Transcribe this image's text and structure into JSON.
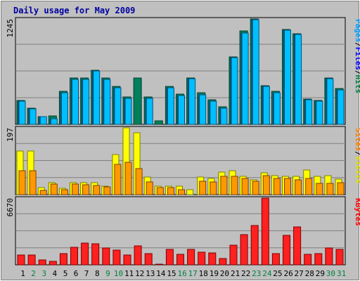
{
  "chart_data": {
    "type": "bar",
    "title": "Daily usage for May 2009",
    "days": [
      "1",
      "2",
      "3",
      "4",
      "5",
      "6",
      "7",
      "8",
      "9",
      "10",
      "11",
      "12",
      "13",
      "14",
      "15",
      "16",
      "17",
      "18",
      "19",
      "20",
      "21",
      "22",
      "23",
      "24",
      "25",
      "26",
      "27",
      "28",
      "29",
      "30",
      "31"
    ],
    "weekend_days": [
      "2",
      "3",
      "9",
      "10",
      "16",
      "17",
      "23",
      "24",
      "30",
      "31"
    ],
    "panels": [
      {
        "name": "pages-files-hits",
        "ymax": 1245,
        "ymax_label": "1245",
        "legend": [
          {
            "label": "Pages",
            "color": "#00a0ff"
          },
          {
            "label": "/",
            "color": "#000000"
          },
          {
            "label": "Files",
            "color": "#0000ff"
          },
          {
            "label": "/",
            "color": "#000000"
          },
          {
            "label": "Hits",
            "color": "#008040"
          }
        ],
        "series": [
          {
            "name": "Hits",
            "color": "#00805c",
            "values": [
              280,
              190,
              95,
              100,
              390,
              550,
              550,
              640,
              550,
              450,
              320,
              550,
              320,
              40,
              450,
              360,
              550,
              370,
              290,
              210,
              800,
              1100,
              1245,
              460,
              390,
              1120,
              1070,
              300,
              280,
              550,
              420
            ]
          },
          {
            "name": "Files",
            "color": "#1e6ec8",
            "values": [
              270,
              180,
              90,
              70,
              370,
              530,
              530,
              630,
              530,
              430,
              310,
              0,
              310,
              0,
              430,
              340,
              540,
              350,
              270,
              190,
              790,
              1080,
              1240,
              450,
              370,
              1110,
              1060,
              290,
              270,
              540,
              410
            ]
          },
          {
            "name": "Pages",
            "color": "#00bfff",
            "values": [
              270,
              180,
              90,
              70,
              370,
              530,
              530,
              630,
              530,
              430,
              310,
              0,
              310,
              0,
              430,
              340,
              540,
              350,
              270,
              190,
              790,
              1080,
              1240,
              450,
              370,
              1110,
              1060,
              290,
              270,
              540,
              410
            ]
          }
        ]
      },
      {
        "name": "sites-visits",
        "ymax": 197,
        "ymax_label": "197",
        "legend": [
          {
            "label": "Sites",
            "color": "#ff8000"
          },
          {
            "label": "/",
            "color": "#000000"
          },
          {
            "label": "Visits",
            "color": "#e0e000"
          }
        ],
        "series": [
          {
            "name": "Visits",
            "color": "#ffff00",
            "values": [
              128,
              128,
              20,
              35,
              19,
              35,
              35,
              35,
              24,
              118,
              197,
              182,
              52,
              24,
              24,
              24,
              15,
              52,
              48,
              66,
              70,
              53,
              43,
              65,
              55,
              53,
              53,
              72,
              54,
              56,
              45
            ]
          },
          {
            "name": "Sites",
            "color": "#ff9900",
            "values": [
              70,
              70,
              12,
              32,
              14,
              31,
              28,
              27,
              22,
              90,
              95,
              77,
              38,
              20,
              20,
              14,
              0,
              40,
              38,
              54,
              54,
              48,
              40,
              55,
              48,
              48,
              44,
              48,
              34,
              34,
              35
            ]
          }
        ]
      },
      {
        "name": "kbytes",
        "ymax": 6670,
        "ymax_label": "6670",
        "legend": [
          {
            "label": "KBytes",
            "color": "#ff0000"
          }
        ],
        "series": [
          {
            "name": "KBytes",
            "color": "#ff2020",
            "values": [
              950,
              950,
              480,
              360,
              1110,
              1790,
              2180,
              2100,
              1700,
              1450,
              1000,
              1920,
              1140,
              90,
              1560,
              1070,
              1570,
              1230,
              1200,
              600,
              1990,
              3010,
              3960,
              6670,
              1130,
              2960,
              3770,
              1070,
              1140,
              1680,
              1530
            ]
          }
        ]
      }
    ]
  }
}
